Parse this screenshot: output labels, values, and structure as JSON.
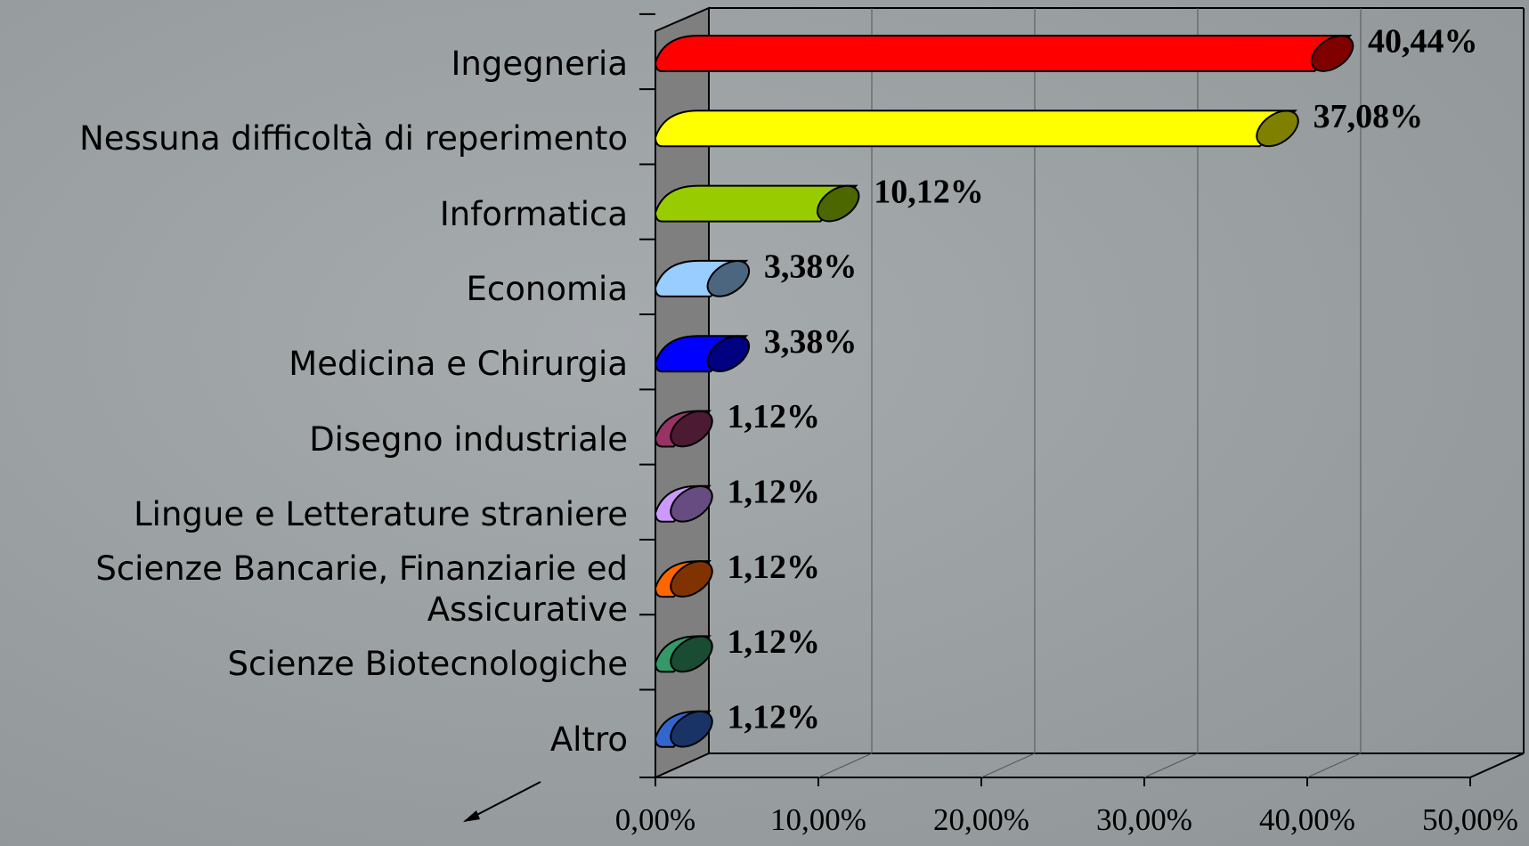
{
  "chart_data": {
    "type": "bar",
    "orientation": "horizontal",
    "categories": [
      "Ingegneria",
      "Nessuna difficoltà di reperimento",
      "Informatica",
      "Economia",
      "Medicina e Chirurgia",
      "Disegno industriale",
      "Lingue e Letterature straniere",
      "Scienze Bancarie, Finanziarie ed Assicurative",
      "Scienze Biotecnologiche",
      "Altro"
    ],
    "values": [
      40.44,
      37.08,
      10.12,
      3.38,
      3.38,
      1.12,
      1.12,
      1.12,
      1.12,
      1.12
    ],
    "value_labels": [
      "40,44%",
      "37,08%",
      "10,12%",
      "3,38%",
      "3,38%",
      "1,12%",
      "1,12%",
      "1,12%",
      "1,12%",
      "1,12%"
    ],
    "colors": [
      "#ff0000",
      "#ffff00",
      "#99cc00",
      "#99ccff",
      "#0000ff",
      "#993366",
      "#cc99ff",
      "#ff6600",
      "#339966",
      "#3366cc"
    ],
    "xlim": [
      0,
      50
    ],
    "xticks": [
      {
        "value": 0,
        "label": "0,00%"
      },
      {
        "value": 10,
        "label": "10,00%"
      },
      {
        "value": 20,
        "label": "20,00%"
      },
      {
        "value": 30,
        "label": "30,00%"
      },
      {
        "value": 40,
        "label": "40,00%"
      },
      {
        "value": 50,
        "label": "50,00%"
      }
    ],
    "grid": true
  }
}
